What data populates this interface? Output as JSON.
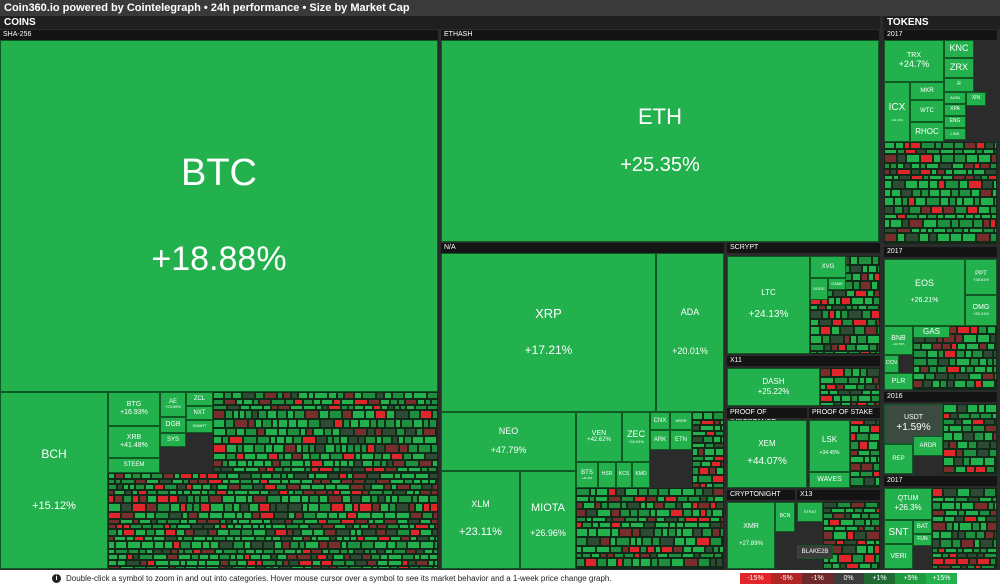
{
  "header": {
    "title": "Coin360.io powered by Cointelegraph • 24h performance • Size by Market Cap"
  },
  "groups": {
    "coins": "COINS",
    "tokens": "TOKENS"
  },
  "subgroups": {
    "sha256": "SHA-256",
    "ethash": "ETHASH",
    "na": "N/A",
    "scrypt": "SCRYPT",
    "x11": "X11",
    "poi": "PROOF OF IMPORTANCE",
    "pos": "PROOF OF STAKE",
    "cryptonight": "CRYPTONIGHT",
    "x13": "X13",
    "t2017a": "2017",
    "t2017b": "2017",
    "t2016": "2016",
    "t2017c": "2017"
  },
  "tiles": {
    "btc": {
      "symbol": "BTC",
      "pct": "+18.88%"
    },
    "bch": {
      "symbol": "BCH",
      "pct": "+15.12%"
    },
    "btg": {
      "symbol": "BTG",
      "pct": "+16.93%"
    },
    "xrb": {
      "symbol": "XRB",
      "pct": "+41.48%"
    },
    "steem": {
      "symbol": "STEEM"
    },
    "ae": {
      "symbol": "AE",
      "pct": "+23.69%"
    },
    "dgb": {
      "symbol": "DGB"
    },
    "sys": {
      "symbol": "SYS"
    },
    "zcl": {
      "symbol": "ZCL"
    },
    "nxt": {
      "symbol": "NXT"
    },
    "smart": {
      "symbol": "SMART"
    },
    "eth": {
      "symbol": "ETH",
      "pct": "+25.35%"
    },
    "xrp": {
      "symbol": "XRP",
      "pct": "+17.21%"
    },
    "ada": {
      "symbol": "ADA",
      "pct": "+20.01%"
    },
    "neo": {
      "symbol": "NEO",
      "pct": "+47.79%"
    },
    "xlm": {
      "symbol": "XLM",
      "pct": "+23.11%"
    },
    "miota": {
      "symbol": "MIOTA",
      "pct": "+26.96%"
    },
    "ven": {
      "symbol": "VEN",
      "pct": "+42.62%"
    },
    "zec": {
      "symbol": "ZEC",
      "pct": "+34.04%"
    },
    "cnx": {
      "symbol": "CNX"
    },
    "ardr": {
      "symbol": "ARDR"
    },
    "ark": {
      "symbol": "ARK"
    },
    "etn": {
      "symbol": "ETN"
    },
    "bts": {
      "symbol": "BTS",
      "pct": "+46.5%"
    },
    "hsr": {
      "symbol": "HSR"
    },
    "kcs": {
      "symbol": "KCS"
    },
    "kmd": {
      "symbol": "KMD"
    },
    "ltc": {
      "symbol": "LTC",
      "pct": "+24.13%"
    },
    "xvg": {
      "symbol": "XVG"
    },
    "doge": {
      "symbol": "DOGE"
    },
    "game": {
      "symbol": "GAME"
    },
    "dash": {
      "symbol": "DASH",
      "pct": "+25.22%"
    },
    "xem": {
      "symbol": "XEM",
      "pct": "+44.07%"
    },
    "lsk": {
      "symbol": "LSK",
      "pct": "+34.45%"
    },
    "waves": {
      "symbol": "WAVES"
    },
    "xmr": {
      "symbol": "XMR",
      "pct": "+27.89%"
    },
    "bcn": {
      "symbol": "BCN"
    },
    "strat": {
      "symbol": "STRAT"
    },
    "blake2b": {
      "symbol": "BLAKE2B"
    },
    "trx": {
      "symbol": "TRX",
      "pct": "+24.7%"
    },
    "mkr": {
      "symbol": "MKR"
    },
    "icx": {
      "symbol": "ICX",
      "pct": "+62.13%"
    },
    "wtc": {
      "symbol": "WTC"
    },
    "rhoc": {
      "symbol": "RHOC"
    },
    "knc": {
      "symbol": "KNC"
    },
    "zrx": {
      "symbol": "ZRX"
    },
    "r": {
      "symbol": "R"
    },
    "aion": {
      "symbol": "AION"
    },
    "xin": {
      "symbol": "XIN"
    },
    "xpa": {
      "symbol": "XPA"
    },
    "eng": {
      "symbol": "ENG"
    },
    "link": {
      "symbol": "LINK"
    },
    "eos": {
      "symbol": "EOS",
      "pct": "+26.21%"
    },
    "ppt": {
      "symbol": "PPT",
      "pct": "+38.61%"
    },
    "omg": {
      "symbol": "OMG",
      "pct": "+35.01%"
    },
    "gas": {
      "symbol": "GAS"
    },
    "bnb": {
      "symbol": "BNB",
      "pct": "+30.79%"
    },
    "dcn": {
      "symbol": "DCN"
    },
    "plr": {
      "symbol": "PLR"
    },
    "usdt": {
      "symbol": "USDT",
      "pct": "+1.59%"
    },
    "rep": {
      "symbol": "REP"
    },
    "ardr2": {
      "symbol": "ARDR"
    },
    "qtum": {
      "symbol": "QTUM",
      "pct": "+26.3%"
    },
    "snt": {
      "symbol": "SNT"
    },
    "bat": {
      "symbol": "BAT"
    },
    "fun": {
      "symbol": "FUN"
    },
    "veri": {
      "symbol": "VERI"
    }
  },
  "footer": {
    "info_icon": "i",
    "message": "Double-click a symbol to zoom in and out into categories. Hover mouse cursor over a symbol to see its market behavior and a 1-week price change graph.",
    "legend": [
      "-15%",
      "-5%",
      "-1%",
      "0%",
      "+1%",
      "+5%",
      "+15%"
    ]
  },
  "colors": {
    "strong_up": "#22b14c",
    "up": "#1e8f3f",
    "flat": "#2e4a35",
    "down": "#7a2d2d",
    "strong_down": "#e0262a",
    "legend": [
      "#e0262a",
      "#b32424",
      "#6e2a2a",
      "#3c3c3c",
      "#1f6b33",
      "#1e9a3f",
      "#22b14c"
    ]
  }
}
